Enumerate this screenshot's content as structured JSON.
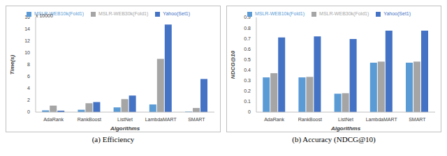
{
  "chart_data": [
    {
      "type": "bar",
      "title": "(a) Efficiency",
      "x_label": "Algorithms",
      "y_label": "Time(s)",
      "annotations": [
        "x 10000"
      ],
      "categories": [
        "AdaRank",
        "RankBoost",
        "ListNet",
        "LambdaMART",
        "SMART"
      ],
      "series": [
        {
          "name": "MSLR-WEB10k(Fold1)",
          "color": "#5b9bd5",
          "values": [
            0.3,
            0.4,
            0.8,
            1.3,
            0.1
          ]
        },
        {
          "name": "MSLR-WEB30k(Fold1)",
          "color": "#a5a5a5",
          "values": [
            1.1,
            1.5,
            2.2,
            9.0,
            0.7
          ]
        },
        {
          "name": "Yahoo(Set1)",
          "color": "#4472c4",
          "values": [
            0.25,
            1.7,
            2.8,
            14.8,
            5.6
          ]
        }
      ],
      "ylim": [
        0,
        16
      ],
      "yticks": [
        0,
        2,
        4,
        6,
        8,
        10,
        12,
        14,
        16
      ],
      "legend": "top"
    },
    {
      "type": "bar",
      "title": "(b) Accuracy (NDCG@10)",
      "x_label": "Algorithms",
      "y_label": "NDCG@10",
      "categories": [
        "AdaRank",
        "RankBoost",
        "ListNet",
        "LambdaMART",
        "SMART"
      ],
      "series": [
        {
          "name": "MSLR-WEB10k(Fold1)",
          "color": "#5b9bd5",
          "values": [
            0.33,
            0.33,
            0.175,
            0.47,
            0.47
          ]
        },
        {
          "name": "MSLR-WEB30k(Fold1)",
          "color": "#a5a5a5",
          "values": [
            0.37,
            0.335,
            0.18,
            0.48,
            0.48
          ]
        },
        {
          "name": "Yahoo(Set1)",
          "color": "#4472c4",
          "values": [
            0.71,
            0.72,
            0.695,
            0.775,
            0.775
          ]
        }
      ],
      "ylim": [
        0,
        0.9
      ],
      "yticks": [
        0,
        0.1,
        0.2,
        0.3,
        0.4,
        0.5,
        0.6,
        0.7,
        0.8,
        0.9
      ],
      "legend": "top"
    }
  ]
}
